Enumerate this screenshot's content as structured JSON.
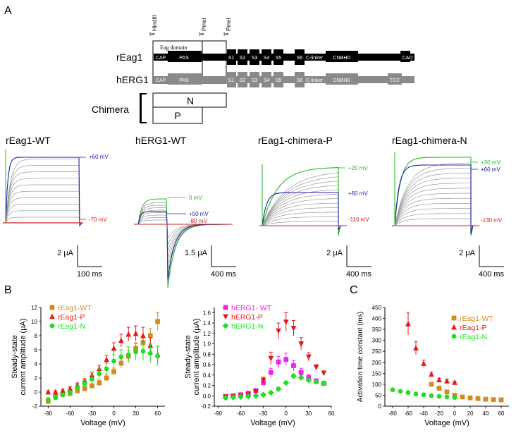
{
  "panel_labels": {
    "a": "A",
    "b": "B",
    "c": "C"
  },
  "construct": {
    "sites": [
      "HindIII",
      "PmeI",
      "PmeI"
    ],
    "eag_domain": "Eag domain",
    "row_labels": {
      "reag1": "rEag1",
      "herg1": "hERG1",
      "chimera": "Chimera"
    },
    "reag1_segments": [
      "CAP",
      "PAS",
      "S1",
      "S2",
      "S3",
      "S4",
      "S5",
      "S6",
      "C-linker",
      "CNBHD",
      "CAD"
    ],
    "herg1_segments": [
      "CAP",
      "PAS",
      "S1",
      "S2",
      "S3",
      "S4",
      "S5",
      "S6",
      "C-linker",
      "CNBHD",
      "TCC"
    ],
    "chimera_n": "N",
    "chimera_p": "P"
  },
  "traces": [
    {
      "title": "rEag1-WT",
      "labels": [
        {
          "text": "+60 mV",
          "color": "#2020b0"
        },
        {
          "text": "-70 mV",
          "color": "#cc2020"
        }
      ],
      "scale_y": "2 μA",
      "scale_x": "100 ms"
    },
    {
      "title": "hERG1-WT",
      "labels": [
        {
          "text": "0 mV",
          "color": "#22bb22"
        },
        {
          "text": "+50 mV",
          "color": "#2020b0"
        },
        {
          "text": "-80 mV",
          "color": "#cc2020"
        }
      ],
      "scale_y": "1.5 μA",
      "scale_x": "400 ms"
    },
    {
      "title": "rEag1-chimera-P",
      "labels": [
        {
          "text": "+20 mV",
          "color": "#22bb22"
        },
        {
          "text": "+60 mV",
          "color": "#2020b0"
        },
        {
          "text": "-110 mV",
          "color": "#cc2020"
        }
      ],
      "scale_y": "2 μA",
      "scale_x": "400 ms"
    },
    {
      "title": "rEag1-chimera-N",
      "labels": [
        {
          "text": "+30 mV",
          "color": "#22bb22"
        },
        {
          "text": "+60 mV",
          "color": "#2020b0"
        },
        {
          "text": "-130 mV",
          "color": "#cc2020"
        }
      ],
      "scale_y": "2 μA",
      "scale_x": "400 ms"
    }
  ],
  "chart_data": [
    {
      "type": "scatter",
      "xlabel": "Voltage (mV)",
      "ylabel": "Steady-state current amplitude (μA)",
      "ylabel_lines": [
        "Steady-state",
        "current amplitude (μA)"
      ],
      "xlim": [
        -100,
        70
      ],
      "ylim": [
        -2,
        12
      ],
      "xticks": [
        -90,
        -60,
        -30,
        0,
        30,
        60
      ],
      "yticks": [
        -2,
        0,
        2,
        4,
        6,
        8,
        10,
        12
      ],
      "series": [
        {
          "name": "rEag1-WT",
          "color": "#d68a1e",
          "marker": "square",
          "x": [
            -90,
            -80,
            -70,
            -60,
            -50,
            -40,
            -30,
            -20,
            -10,
            0,
            10,
            20,
            30,
            40,
            50,
            60
          ],
          "y": [
            -1.3,
            -0.6,
            -0.3,
            -0.2,
            0.2,
            0.5,
            0.9,
            1.3,
            2.0,
            2.9,
            4.1,
            5.1,
            6.2,
            7.0,
            8.0,
            10.0
          ],
          "err": [
            0.4,
            0.2,
            0.1,
            0.1,
            0.2,
            0.2,
            0.3,
            0.4,
            0.5,
            0.5,
            0.7,
            0.8,
            0.8,
            0.9,
            1.0,
            1.3
          ]
        },
        {
          "name": "rEag1-P",
          "color": "#e31a1c",
          "marker": "triangle",
          "x": [
            -90,
            -80,
            -70,
            -60,
            -50,
            -40,
            -30,
            -20,
            -10,
            0,
            10,
            20,
            30,
            40,
            50,
            60
          ],
          "y": [
            0.0,
            0.0,
            0.2,
            0.5,
            1.0,
            1.6,
            2.4,
            3.3,
            4.6,
            6.2,
            7.3,
            8.2,
            8.3,
            8.0,
            6.6,
            5.3
          ],
          "err": [
            0.2,
            0.2,
            0.2,
            0.3,
            0.3,
            0.3,
            0.4,
            0.5,
            0.6,
            0.8,
            0.9,
            1.0,
            1.1,
            1.2,
            1.1,
            1.2
          ]
        },
        {
          "name": "rEag1-N",
          "color": "#22dd22",
          "marker": "circle",
          "x": [
            -90,
            -80,
            -70,
            -60,
            -50,
            -40,
            -30,
            -20,
            -10,
            0,
            10,
            20,
            30,
            40,
            50,
            60
          ],
          "y": [
            -1.1,
            -0.8,
            -0.4,
            -0.1,
            0.6,
            1.2,
            1.8,
            2.6,
            3.3,
            4.4,
            5.0,
            5.3,
            5.7,
            5.8,
            5.5,
            5.1
          ],
          "err": [
            0.3,
            0.3,
            0.3,
            0.4,
            0.4,
            0.5,
            0.6,
            0.7,
            0.8,
            0.9,
            1.0,
            1.1,
            1.2,
            1.3,
            1.3,
            1.4
          ]
        }
      ],
      "legend": "top-left"
    },
    {
      "type": "scatter",
      "xlabel": "Voltage (mV)",
      "ylabel": "Steady-state current amplitude (μA)",
      "ylabel_lines": [
        "Steady-state",
        "current amplitude (μA)"
      ],
      "xlim": [
        -95,
        60
      ],
      "ylim": [
        -0.2,
        1.7
      ],
      "xticks": [
        -90,
        -60,
        -30,
        0,
        30,
        60
      ],
      "yticks": [
        -0.2,
        0.0,
        0.2,
        0.4,
        0.6,
        0.8,
        1.0,
        1.2,
        1.4,
        1.6
      ],
      "series": [
        {
          "name": "hERG1- WT",
          "color": "#ee22ee",
          "marker": "square",
          "x": [
            -80,
            -70,
            -60,
            -50,
            -40,
            -30,
            -20,
            -10,
            0,
            10,
            20,
            30,
            40,
            50
          ],
          "y": [
            -0.01,
            0.0,
            0.02,
            0.05,
            0.1,
            0.25,
            0.45,
            0.65,
            0.7,
            0.58,
            0.45,
            0.35,
            0.28,
            0.24
          ],
          "err": [
            0.01,
            0.01,
            0.01,
            0.02,
            0.03,
            0.05,
            0.08,
            0.11,
            0.12,
            0.1,
            0.08,
            0.06,
            0.05,
            0.04
          ]
        },
        {
          "name": "hERG1-P",
          "color": "#e31a1c",
          "marker": "triangle-down",
          "x": [
            -80,
            -70,
            -60,
            -50,
            -40,
            -30,
            -20,
            -10,
            0,
            10,
            20,
            30,
            40,
            50
          ],
          "y": [
            -0.02,
            -0.01,
            0.0,
            0.02,
            0.08,
            0.3,
            0.72,
            1.25,
            1.42,
            1.3,
            1.0,
            0.75,
            0.55,
            0.44
          ],
          "err": [
            0.01,
            0.01,
            0.01,
            0.02,
            0.03,
            0.06,
            0.12,
            0.15,
            0.18,
            0.15,
            0.12,
            0.08,
            0.05,
            0.04
          ]
        },
        {
          "name": "hERG1-N",
          "color": "#22dd22",
          "marker": "diamond",
          "x": [
            -80,
            -70,
            -60,
            -50,
            -40,
            -30,
            -20,
            -10,
            0,
            10,
            20,
            30,
            40,
            50
          ],
          "y": [
            -0.04,
            -0.03,
            -0.02,
            -0.01,
            0.0,
            0.02,
            0.06,
            0.13,
            0.25,
            0.38,
            0.35,
            0.3,
            0.27,
            0.24
          ],
          "err": [
            0.01,
            0.01,
            0.01,
            0.01,
            0.01,
            0.02,
            0.02,
            0.03,
            0.03,
            0.04,
            0.04,
            0.03,
            0.03,
            0.03
          ]
        }
      ],
      "legend": "top-left"
    },
    {
      "type": "scatter",
      "xlabel": "Voltage (mV)",
      "ylabel": "Activation time constant (ms)",
      "xlim": [
        -90,
        70
      ],
      "ylim": [
        0,
        450
      ],
      "xticks": [
        -80,
        -60,
        -40,
        -20,
        0,
        20,
        40,
        60
      ],
      "yticks": [
        0,
        50,
        100,
        150,
        200,
        250,
        300,
        350,
        400,
        450
      ],
      "series": [
        {
          "name": "rEag1-WT",
          "color": "#d68a1e",
          "marker": "square",
          "x": [
            -30,
            -20,
            -10,
            0,
            10,
            20,
            30,
            40,
            50,
            60
          ],
          "y": [
            100,
            82,
            65,
            50,
            42,
            38,
            35,
            32,
            30,
            29
          ],
          "err": [
            5,
            4,
            4,
            3,
            3,
            2,
            2,
            2,
            2,
            2
          ]
        },
        {
          "name": "rEag1-P",
          "color": "#e31a1c",
          "marker": "triangle",
          "x": [
            -60,
            -50,
            -40,
            -30,
            -20,
            -10,
            0
          ],
          "y": [
            375,
            265,
            195,
            145,
            120,
            115,
            108
          ],
          "err": [
            50,
            30,
            15,
            10,
            8,
            6,
            5
          ]
        },
        {
          "name": "rEag1-N",
          "color": "#22dd22",
          "marker": "circle",
          "x": [
            -80,
            -70,
            -60,
            -50,
            -40,
            -30,
            -20,
            -10,
            0
          ],
          "y": [
            75,
            68,
            62,
            56,
            52,
            48,
            45,
            42,
            40
          ],
          "err": [
            3,
            3,
            3,
            2,
            2,
            2,
            2,
            2,
            2
          ]
        }
      ],
      "legend": "top-right"
    }
  ]
}
